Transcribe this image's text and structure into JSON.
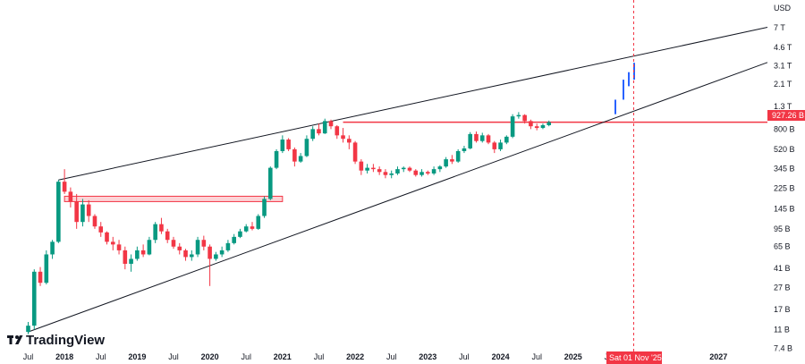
{
  "chart_data": {
    "type": "candlestick",
    "unit_label": "USD",
    "y_scale": "log",
    "y_ticks": [
      "7 T",
      "4.6 T",
      "3.1 T",
      "2.1 T",
      "1.3 T",
      "800 B",
      "520 B",
      "345 B",
      "225 B",
      "145 B",
      "95 B",
      "65 B",
      "41 B",
      "27 B",
      "17 B",
      "11 B",
      "7.4 B"
    ],
    "y_tick_values": [
      7000,
      4600,
      3100,
      2100,
      1300,
      800,
      520,
      345,
      225,
      145,
      95,
      65,
      41,
      27,
      17,
      11,
      7.4
    ],
    "x_ticks": [
      "Jul",
      "2018",
      "Jul",
      "2019",
      "Jul",
      "2020",
      "Jul",
      "2021",
      "Jul",
      "2022",
      "Jul",
      "2023",
      "Jul",
      "2024",
      "Jul",
      "2025",
      "Jul",
      "2027"
    ],
    "bold_x_ticks": [
      "2018",
      "2019",
      "2020",
      "2021",
      "2022",
      "2023",
      "2024",
      "2025",
      "2027"
    ],
    "current_price_label": "927.26 B",
    "current_price": 927.26,
    "cursor_label": "Sat 01 Nov '25",
    "colors": {
      "up": "#089981",
      "down": "#f23645",
      "projection": "#2962ff",
      "resistance": "#f23645",
      "trendline": "#131722"
    },
    "ohlc": [
      [
        10.5,
        13,
        10,
        12
      ],
      [
        12,
        40,
        11,
        38
      ],
      [
        38,
        42,
        28,
        30
      ],
      [
        30,
        60,
        29,
        55
      ],
      [
        55,
        75,
        50,
        72
      ],
      [
        72,
        270,
        70,
        260
      ],
      [
        260,
        340,
        200,
        210
      ],
      [
        210,
        230,
        150,
        170
      ],
      [
        170,
        200,
        95,
        110
      ],
      [
        110,
        180,
        100,
        160
      ],
      [
        160,
        175,
        110,
        125
      ],
      [
        125,
        130,
        95,
        100
      ],
      [
        100,
        110,
        80,
        88
      ],
      [
        88,
        90,
        68,
        72
      ],
      [
        72,
        80,
        60,
        68
      ],
      [
        68,
        75,
        55,
        60
      ],
      [
        60,
        65,
        40,
        45
      ],
      [
        45,
        55,
        38,
        50
      ],
      [
        50,
        65,
        48,
        60
      ],
      [
        60,
        68,
        52,
        55
      ],
      [
        55,
        80,
        54,
        75
      ],
      [
        75,
        110,
        70,
        105
      ],
      [
        105,
        120,
        85,
        90
      ],
      [
        90,
        95,
        70,
        75
      ],
      [
        75,
        80,
        62,
        65
      ],
      [
        65,
        70,
        55,
        60
      ],
      [
        60,
        62,
        48,
        52
      ],
      [
        52,
        60,
        48,
        55
      ],
      [
        55,
        80,
        52,
        75
      ],
      [
        75,
        82,
        60,
        65
      ],
      [
        65,
        68,
        28,
        50
      ],
      [
        50,
        58,
        48,
        55
      ],
      [
        55,
        65,
        52,
        60
      ],
      [
        60,
        75,
        58,
        70
      ],
      [
        70,
        85,
        68,
        80
      ],
      [
        80,
        95,
        78,
        90
      ],
      [
        90,
        105,
        88,
        100
      ],
      [
        100,
        110,
        92,
        95
      ],
      [
        95,
        130,
        93,
        125
      ],
      [
        125,
        190,
        120,
        180
      ],
      [
        180,
        360,
        175,
        350
      ],
      [
        350,
        520,
        340,
        500
      ],
      [
        500,
        700,
        480,
        640
      ],
      [
        640,
        660,
        500,
        520
      ],
      [
        520,
        540,
        360,
        400
      ],
      [
        400,
        480,
        390,
        450
      ],
      [
        450,
        700,
        440,
        650
      ],
      [
        650,
        850,
        620,
        800
      ],
      [
        800,
        900,
        700,
        730
      ],
      [
        730,
        1000,
        720,
        950
      ],
      [
        950,
        980,
        800,
        850
      ],
      [
        850,
        870,
        650,
        700
      ],
      [
        700,
        820,
        600,
        650
      ],
      [
        650,
        700,
        520,
        600
      ],
      [
        600,
        620,
        380,
        400
      ],
      [
        400,
        420,
        300,
        330
      ],
      [
        330,
        380,
        310,
        350
      ],
      [
        350,
        380,
        320,
        340
      ],
      [
        340,
        360,
        300,
        320
      ],
      [
        320,
        340,
        280,
        300
      ],
      [
        300,
        330,
        280,
        310
      ],
      [
        310,
        360,
        300,
        340
      ],
      [
        340,
        360,
        320,
        350
      ],
      [
        350,
        360,
        320,
        330
      ],
      [
        330,
        340,
        290,
        300
      ],
      [
        300,
        340,
        290,
        320
      ],
      [
        320,
        330,
        300,
        310
      ],
      [
        310,
        360,
        300,
        340
      ],
      [
        340,
        370,
        320,
        360
      ],
      [
        360,
        440,
        350,
        420
      ],
      [
        420,
        460,
        380,
        400
      ],
      [
        400,
        520,
        390,
        500
      ],
      [
        500,
        560,
        480,
        530
      ],
      [
        530,
        750,
        520,
        720
      ],
      [
        720,
        760,
        600,
        620
      ],
      [
        620,
        740,
        600,
        700
      ],
      [
        700,
        720,
        580,
        600
      ],
      [
        600,
        620,
        480,
        520
      ],
      [
        520,
        640,
        500,
        600
      ],
      [
        600,
        700,
        580,
        680
      ],
      [
        680,
        1100,
        660,
        1050
      ],
      [
        1050,
        1150,
        1000,
        1080
      ],
      [
        1080,
        1100,
        900,
        950
      ],
      [
        950,
        980,
        800,
        850
      ],
      [
        850,
        900,
        780,
        820
      ],
      [
        820,
        900,
        800,
        870
      ],
      [
        870,
        960,
        850,
        927
      ]
    ],
    "projection_bars": [
      [
        1100,
        1500
      ],
      [
        1500,
        2300
      ],
      [
        2000,
        2700
      ],
      [
        2300,
        3300
      ]
    ],
    "trendlines": [
      {
        "from": [
          "2017-12",
          270
        ],
        "to": [
          "2021-11",
          1000
        ]
      },
      {
        "from": [
          "2017-07",
          10.5
        ],
        "to": [
          "2025-06",
          927
        ]
      }
    ],
    "resistance_levels": [
      {
        "value": 180,
        "from": "2018-01",
        "to": "2021-01"
      },
      {
        "value": 927.26,
        "from": "2021-11",
        "to": "2026-01"
      }
    ]
  },
  "watermark": {
    "brand": "TradingView",
    "icon": "tradingview-logo-icon"
  }
}
